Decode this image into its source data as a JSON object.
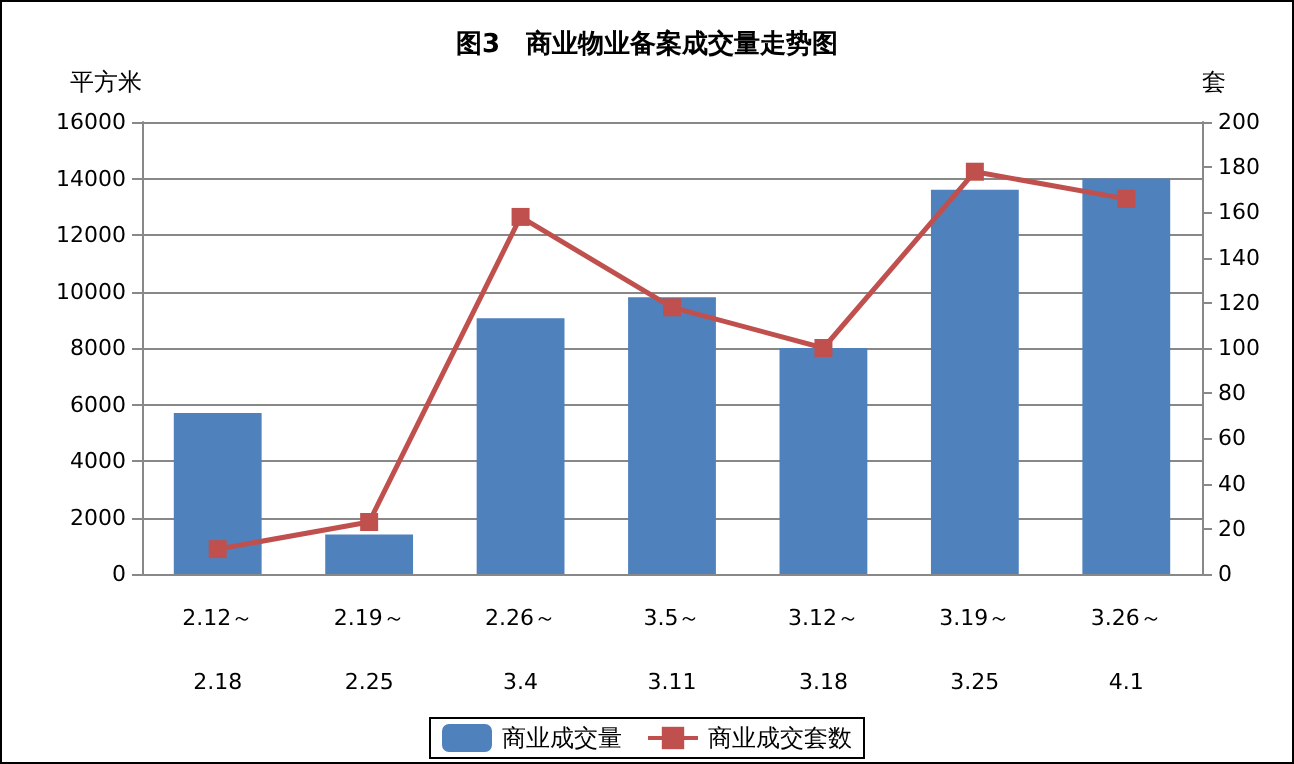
{
  "chart_data": {
    "type": "bar",
    "title": "图3　商业物业备案成交量走势图",
    "ylabel": "平方米",
    "y2label": "套",
    "categories": [
      "2.12～\n2.18",
      "2.19～\n2.25",
      "2.26～\n3.4",
      "3.5～\n3.11",
      "3.12～\n3.18",
      "3.19～\n3.25",
      "3.26～\n4.1"
    ],
    "series": [
      {
        "name": "商业成交量",
        "color": "#4f81bd",
        "values": [
          5700,
          1400,
          9050,
          9800,
          8000,
          13600,
          14000
        ]
      },
      {
        "name": "商业成交套数",
        "type": "line",
        "axis": "y2",
        "color": "#c0504d",
        "marker": "square",
        "values": [
          11,
          23,
          158,
          118,
          100,
          178,
          166
        ]
      }
    ],
    "ylim": [
      0,
      16000
    ],
    "yticks": [
      0,
      2000,
      4000,
      6000,
      8000,
      10000,
      12000,
      14000,
      16000
    ],
    "y2lim": [
      0,
      200
    ],
    "y2ticks": [
      0,
      20,
      40,
      60,
      80,
      100,
      120,
      140,
      160,
      180,
      200
    ],
    "grid": "y",
    "legend": "bottom"
  }
}
